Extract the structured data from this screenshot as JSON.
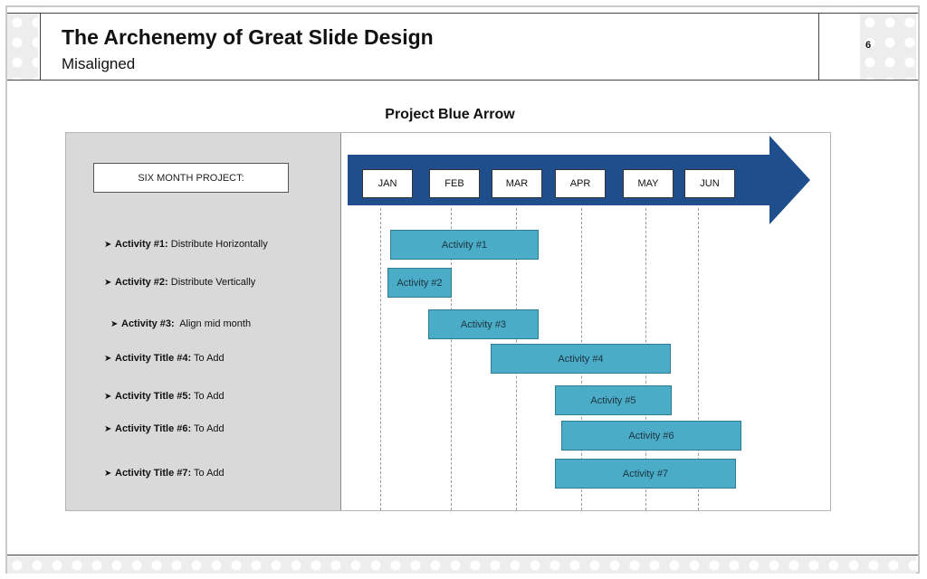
{
  "header": {
    "title": "The Archenemy of Great Slide Design",
    "subtitle": "Misaligned",
    "page_number": "6"
  },
  "diagram": {
    "title": "Project Blue Arrow",
    "left_box": "SIX MONTH PROJECT:",
    "arrow_color": "#1f4e8c",
    "bar_color": "#4aacc6",
    "months": [
      "JAN",
      "FEB",
      "MAR",
      "APR",
      "MAY",
      "JUN"
    ],
    "activities": [
      {
        "bold": "Activity #1:",
        "text": " Distribute Horizontally",
        "bar": "Activity #1"
      },
      {
        "bold": "Activity #2:",
        "text": " Distribute Vertically",
        "bar": "Activity #2"
      },
      {
        "bold": "Activity #3:",
        "text": "  Align mid month",
        "bar": "Activity #3"
      },
      {
        "bold": "Activity Title #4:",
        "text": " To Add",
        "bar": "Activity #4"
      },
      {
        "bold": "Activity Title #5:",
        "text": " To Add",
        "bar": "Activity #5"
      },
      {
        "bold": "Activity Title #6:",
        "text": " To Add",
        "bar": "Activity #6"
      },
      {
        "bold": "Activity Title #7:",
        "text": " To Add",
        "bar": "Activity #7"
      }
    ]
  }
}
